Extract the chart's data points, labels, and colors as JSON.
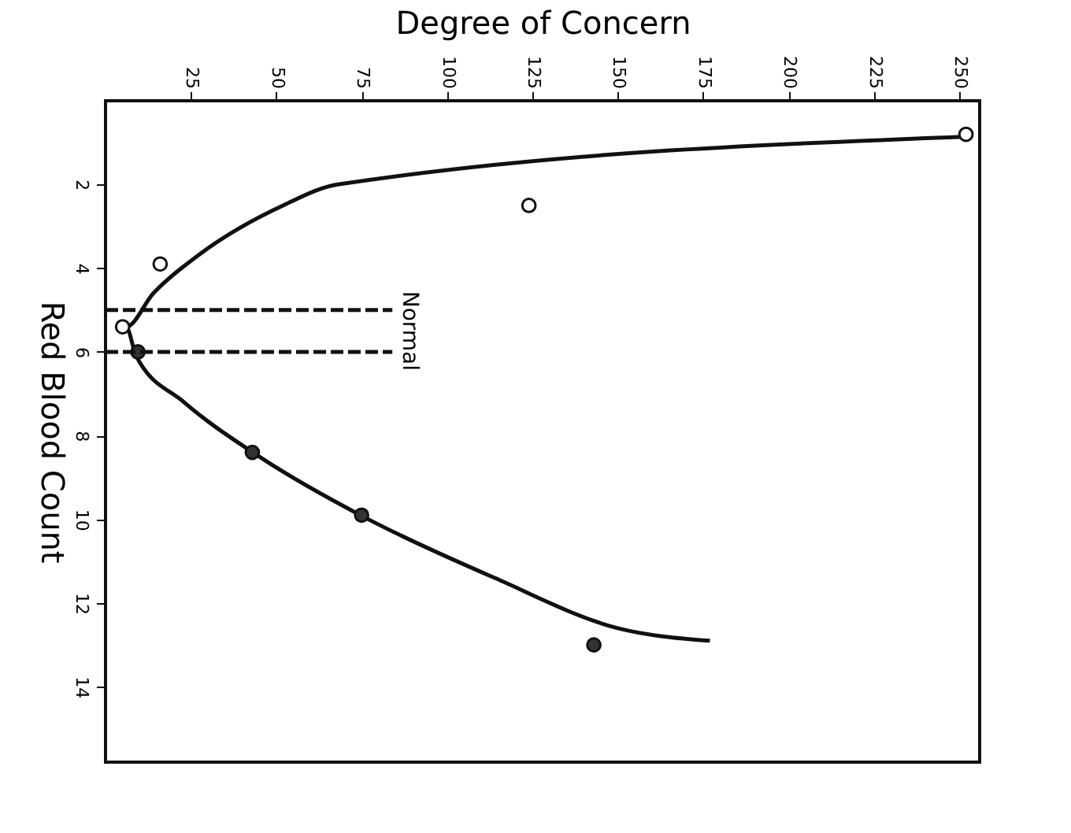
{
  "chart_data": {
    "type": "line",
    "xlabel": "Degree of Concern",
    "ylabel": "Red Blood Count",
    "xlim": [
      0,
      256
    ],
    "ylim": [
      15.8,
      0
    ],
    "xticks": [
      25,
      50,
      75,
      100,
      125,
      150,
      175,
      200,
      225,
      250
    ],
    "yticks": [
      2,
      4,
      6,
      8,
      10,
      12,
      14
    ],
    "grid": false,
    "series": [
      {
        "color": "#111111",
        "line_style": "solid",
        "marker": "none",
        "x": [
          254,
          68,
          52,
          27,
          14,
          6,
          9,
          23,
          45,
          77,
          114,
          150,
          177
        ],
        "values": [
          0.85,
          2.0,
          2.5,
          3.7,
          4.6,
          5.4,
          6.1,
          7.2,
          8.5,
          10.0,
          11.4,
          12.6,
          12.9
        ]
      },
      {
        "type": "scatter",
        "color": "#ffffff",
        "marker": "circle",
        "x": [
          252,
          124,
          16,
          5
        ],
        "values": [
          0.8,
          2.5,
          3.9,
          5.4
        ]
      },
      {
        "type": "scatter",
        "color": "#333333",
        "marker": "circle",
        "x": [
          9.5,
          43,
          75,
          143
        ],
        "values": [
          6.0,
          8.4,
          9.9,
          13.0
        ]
      },
      {
        "color": "#111111",
        "line_style": "dashed",
        "marker": "none",
        "x": [
          0,
          84
        ],
        "values": [
          5,
          5
        ]
      },
      {
        "color": "#111111",
        "line_style": "dashed",
        "marker": "none",
        "x": [
          0,
          84
        ],
        "values": [
          6,
          6
        ]
      }
    ],
    "annotations": [
      "Normal"
    ]
  }
}
